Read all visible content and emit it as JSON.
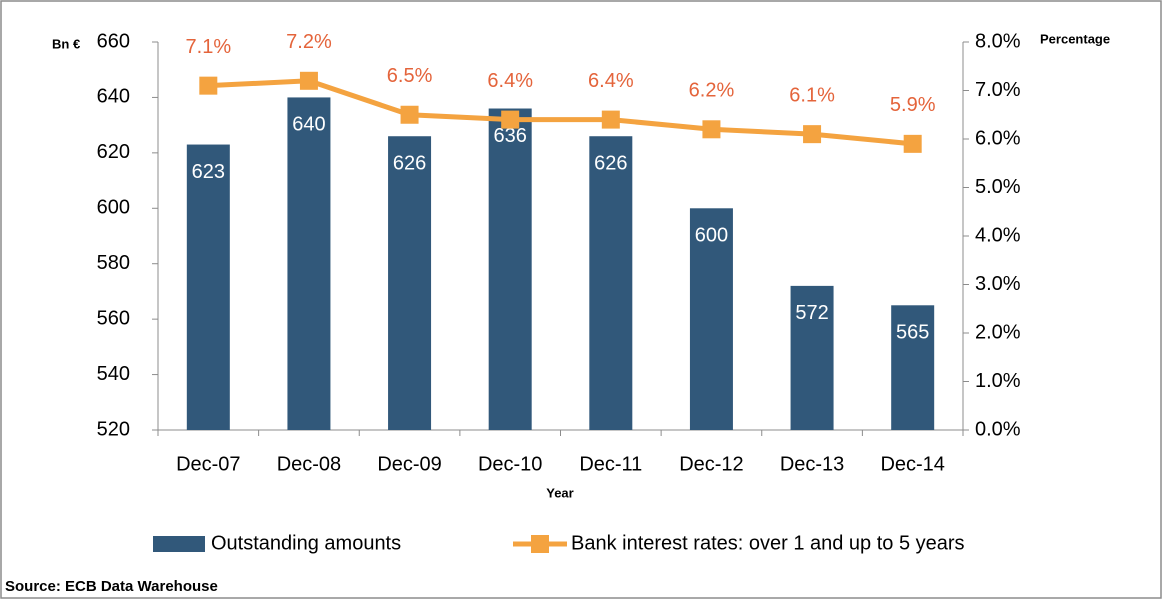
{
  "chart_data": {
    "type": "bar",
    "y_label": "Bn €",
    "y2_label": "Percentage",
    "x_label": "Year",
    "source": "Source: ECB Data Warehouse",
    "categories": [
      "Dec-07",
      "Dec-08",
      "Dec-09",
      "Dec-10",
      "Dec-11",
      "Dec-12",
      "Dec-13",
      "Dec-14"
    ],
    "series": [
      {
        "name": "Outstanding amounts",
        "type": "bar",
        "color": "#31587a",
        "values": [
          623,
          640,
          626,
          636,
          626,
          600,
          572,
          565
        ]
      },
      {
        "name": "Bank interest rates: over 1 and up to 5 years",
        "type": "line",
        "axis": "y2",
        "color": "#f4a340",
        "label_color": "#e4643b",
        "values": [
          7.1,
          7.2,
          6.5,
          6.4,
          6.4,
          6.2,
          6.1,
          5.9
        ],
        "value_labels": [
          "7.1%",
          "7.2%",
          "6.5%",
          "6.4%",
          "6.4%",
          "6.2%",
          "6.1%",
          "5.9%"
        ]
      }
    ],
    "ylim": [
      520,
      660
    ],
    "yticks": [
      520,
      540,
      560,
      580,
      600,
      620,
      640,
      660
    ],
    "y2lim": [
      0,
      8
    ],
    "y2ticks": [
      {
        "value": 0,
        "label": "0.0%"
      },
      {
        "value": 1,
        "label": "1.0%"
      },
      {
        "value": 2,
        "label": "2.0%"
      },
      {
        "value": 3,
        "label": "3.0%"
      },
      {
        "value": 4,
        "label": "4.0%"
      },
      {
        "value": 5,
        "label": "5.0%"
      },
      {
        "value": 6,
        "label": "6.0%"
      },
      {
        "value": 7,
        "label": "7.0%"
      },
      {
        "value": 8,
        "label": "8.0%"
      }
    ],
    "legend": "bottom"
  }
}
